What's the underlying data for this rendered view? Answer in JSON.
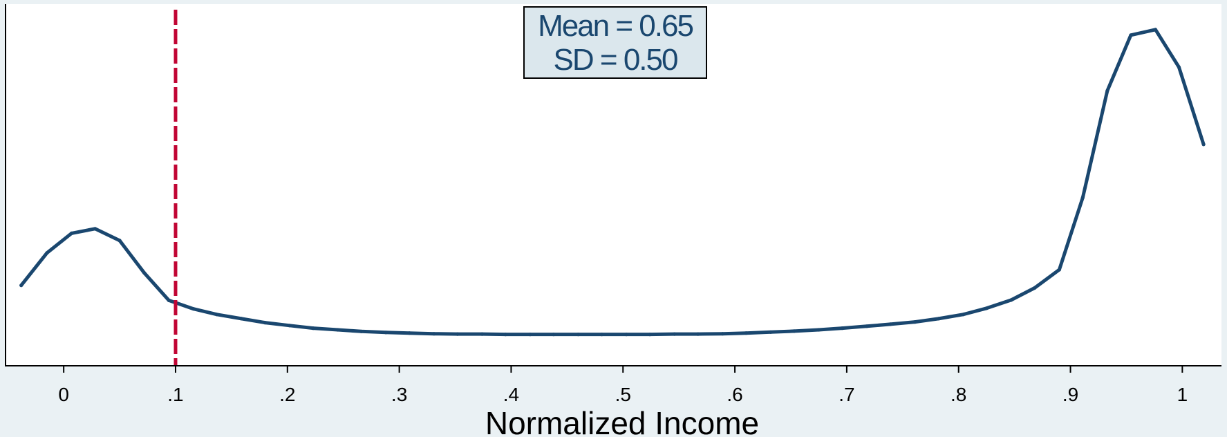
{
  "chart_data": {
    "type": "line",
    "title": "",
    "xlabel": "Normalized Income",
    "ylabel": "",
    "xlim": [
      -0.052,
      1.035
    ],
    "ylim": [
      0,
      1
    ],
    "grid": false,
    "legend": "none",
    "x_ticks": [
      {
        "value": 0,
        "label": "0"
      },
      {
        "value": 0.1,
        "label": ".1"
      },
      {
        "value": 0.2,
        "label": ".2"
      },
      {
        "value": 0.3,
        "label": ".3"
      },
      {
        "value": 0.4,
        "label": ".4"
      },
      {
        "value": 0.5,
        "label": ".5"
      },
      {
        "value": 0.6,
        "label": ".6"
      },
      {
        "value": 0.7,
        "label": ".7"
      },
      {
        "value": 0.8,
        "label": ".8"
      },
      {
        "value": 0.9,
        "label": ".9"
      },
      {
        "value": 1,
        "label": "1"
      }
    ],
    "reference_line": {
      "x": 0.1,
      "style": "dashed",
      "color": "#c10534"
    },
    "annotation": {
      "lines": [
        "Mean = 0.65",
        "SD = 0.50"
      ]
    },
    "colors": {
      "line": "#1a476f",
      "ref_line": "#c10534",
      "plot_bg": "#ffffff",
      "outer_bg": "#eaf1f4",
      "annotation_bg": "#dbe7ed"
    },
    "series": [
      {
        "x": [
          -0.038,
          -0.015,
          0.007,
          0.028,
          0.05,
          0.072,
          0.094,
          0.116,
          0.137,
          0.159,
          0.18,
          0.202,
          0.223,
          0.245,
          0.266,
          0.288,
          0.309,
          0.331,
          0.352,
          0.374,
          0.395,
          0.417,
          0.438,
          0.46,
          0.481,
          0.503,
          0.524,
          0.546,
          0.567,
          0.589,
          0.61,
          0.632,
          0.653,
          0.675,
          0.696,
          0.718,
          0.739,
          0.761,
          0.782,
          0.804,
          0.825,
          0.847,
          0.868,
          0.89,
          0.911,
          0.933,
          0.954,
          0.976,
          0.997,
          1.019
        ],
        "y": [
          0.191,
          0.29,
          0.35,
          0.364,
          0.328,
          0.229,
          0.145,
          0.119,
          0.102,
          0.089,
          0.077,
          0.068,
          0.06,
          0.055,
          0.05,
          0.047,
          0.045,
          0.043,
          0.042,
          0.042,
          0.041,
          0.041,
          0.041,
          0.041,
          0.041,
          0.041,
          0.041,
          0.042,
          0.042,
          0.043,
          0.045,
          0.048,
          0.051,
          0.055,
          0.06,
          0.066,
          0.072,
          0.079,
          0.089,
          0.102,
          0.121,
          0.146,
          0.183,
          0.239,
          0.459,
          0.786,
          0.956,
          0.973,
          0.858,
          0.622
        ]
      }
    ]
  }
}
